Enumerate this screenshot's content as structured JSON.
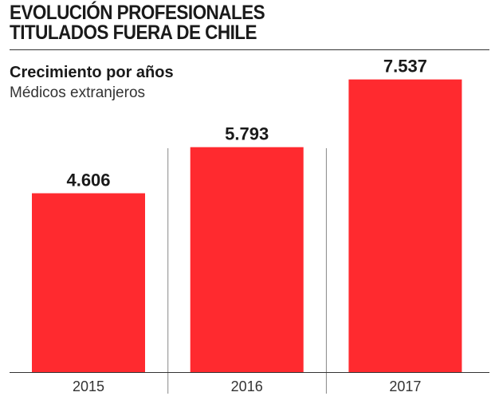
{
  "title_lines": [
    "EVOLUCIÓN PROFESIONALES",
    "TITULADOS FUERA DE CHILE"
  ],
  "subtitle": "Crecimiento por años",
  "caption": "Médicos extranjeros",
  "colors": {
    "bar": "#ff2a2f",
    "text": "#1a1a1a",
    "axis": "#333333",
    "separator": "#888888"
  },
  "chart_data": {
    "type": "bar",
    "title": "EVOLUCIÓN PROFESIONALES TITULADOS FUERA DE CHILE",
    "subtitle": "Crecimiento por años",
    "caption": "Médicos extranjeros",
    "categories": [
      "2015",
      "2016",
      "2017"
    ],
    "values": [
      4606,
      5793,
      7537
    ],
    "value_labels": [
      "4.606",
      "5.793",
      "7.537"
    ],
    "xlabel": "",
    "ylabel": "",
    "ylim": [
      0,
      7900
    ],
    "grid": false,
    "legend": "none"
  }
}
